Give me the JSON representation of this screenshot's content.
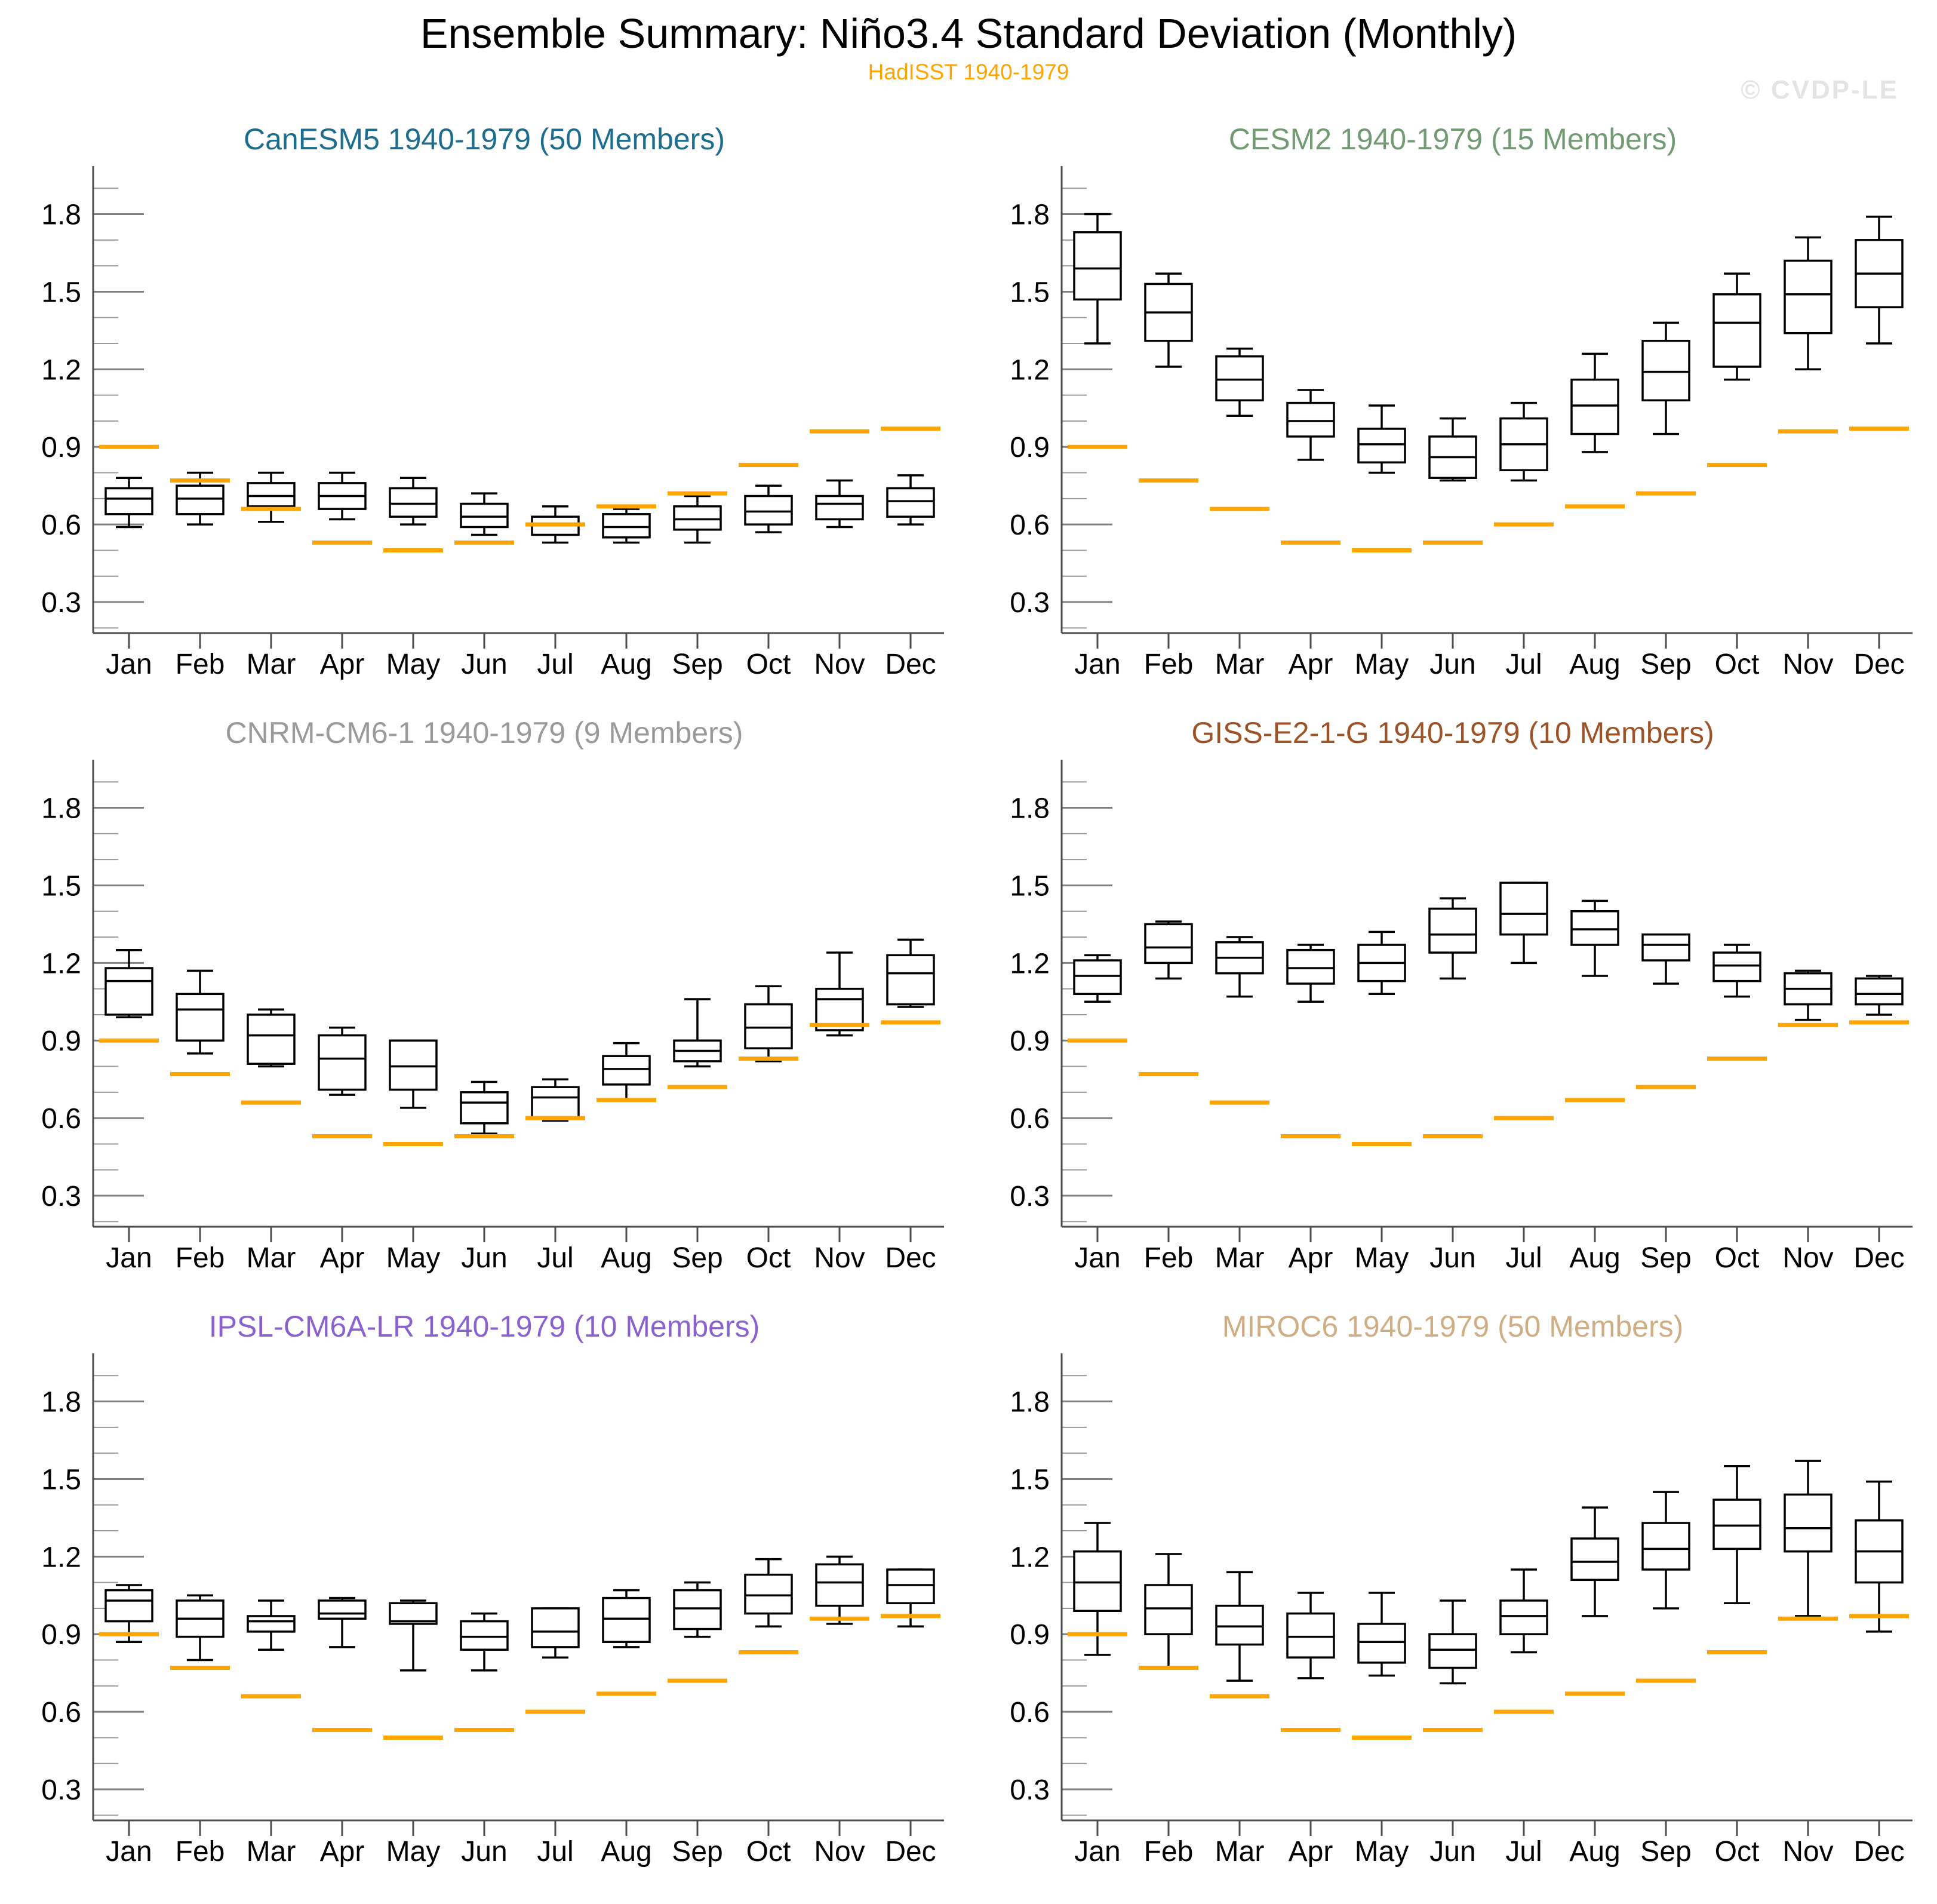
{
  "page": {
    "title": "Ensemble Summary: Niño3.4 Standard Deviation (Monthly)",
    "subtitle": "HadISST 1940-1979",
    "watermark": "© CVDP-LE"
  },
  "colors": {
    "subtitle": "#FFA500",
    "obs_line": "#FFA500",
    "watermark": "#E4E4E4",
    "box_stroke": "#000000",
    "spine": "#4D4D4D",
    "major_tick": "#808080",
    "minor_tick": "#9A9A9A",
    "tick_label": "#000000"
  },
  "axis": {
    "months": [
      "Jan",
      "Feb",
      "Mar",
      "Apr",
      "May",
      "Jun",
      "Jul",
      "Aug",
      "Sep",
      "Oct",
      "Nov",
      "Dec"
    ],
    "y_ticks": [
      0.3,
      0.6,
      0.9,
      1.2,
      1.5,
      1.8
    ],
    "y_minor_step": 0.1,
    "y_minor_min": 0.2,
    "y_minor_max": 1.9,
    "y_min": 0.18,
    "y_max": 1.97,
    "grid": false,
    "legend": "none"
  },
  "obs": {
    "name": "HadISST 1940-1979",
    "values": [
      0.9,
      0.77,
      0.66,
      0.53,
      0.5,
      0.53,
      0.6,
      0.67,
      0.72,
      0.83,
      0.96,
      0.97
    ]
  },
  "chart_data": [
    {
      "type": "box",
      "title": "CanESM5 1940-1979 (50 Members)",
      "model": "CanESM5",
      "period": "1940-1979",
      "members": 50,
      "title_color": "#1D6D8E",
      "categories": [
        "Jan",
        "Feb",
        "Mar",
        "Apr",
        "May",
        "Jun",
        "Jul",
        "Aug",
        "Sep",
        "Oct",
        "Nov",
        "Dec"
      ],
      "box": {
        "low": [
          0.59,
          0.6,
          0.61,
          0.62,
          0.6,
          0.56,
          0.53,
          0.53,
          0.53,
          0.57,
          0.59,
          0.6
        ],
        "q1": [
          0.64,
          0.64,
          0.67,
          0.66,
          0.63,
          0.59,
          0.56,
          0.55,
          0.58,
          0.6,
          0.62,
          0.63
        ],
        "median": [
          0.7,
          0.7,
          0.71,
          0.71,
          0.68,
          0.63,
          0.6,
          0.59,
          0.62,
          0.65,
          0.68,
          0.69
        ],
        "q3": [
          0.74,
          0.75,
          0.76,
          0.76,
          0.74,
          0.68,
          0.63,
          0.64,
          0.67,
          0.71,
          0.71,
          0.74
        ],
        "high": [
          0.78,
          0.8,
          0.8,
          0.8,
          0.78,
          0.72,
          0.67,
          0.66,
          0.71,
          0.75,
          0.77,
          0.79
        ]
      }
    },
    {
      "type": "box",
      "title": "CESM2 1940-1979 (15 Members)",
      "model": "CESM2",
      "period": "1940-1979",
      "members": 15,
      "title_color": "#729B74",
      "categories": [
        "Jan",
        "Feb",
        "Mar",
        "Apr",
        "May",
        "Jun",
        "Jul",
        "Aug",
        "Sep",
        "Oct",
        "Nov",
        "Dec"
      ],
      "box": {
        "low": [
          1.3,
          1.21,
          1.02,
          0.85,
          0.8,
          0.77,
          0.77,
          0.88,
          0.95,
          1.16,
          1.2,
          1.3
        ],
        "q1": [
          1.47,
          1.31,
          1.08,
          0.94,
          0.84,
          0.78,
          0.81,
          0.95,
          1.08,
          1.21,
          1.34,
          1.44
        ],
        "median": [
          1.59,
          1.42,
          1.16,
          1.0,
          0.91,
          0.86,
          0.91,
          1.06,
          1.19,
          1.38,
          1.49,
          1.57
        ],
        "q3": [
          1.73,
          1.53,
          1.25,
          1.07,
          0.97,
          0.94,
          1.01,
          1.16,
          1.31,
          1.49,
          1.62,
          1.7
        ],
        "high": [
          1.8,
          1.57,
          1.28,
          1.12,
          1.06,
          1.01,
          1.07,
          1.26,
          1.38,
          1.57,
          1.71,
          1.79
        ]
      }
    },
    {
      "type": "box",
      "title": "CNRM-CM6-1 1940-1979 (9 Members)",
      "model": "CNRM-CM6-1",
      "period": "1940-1979",
      "members": 9,
      "title_color": "#9A9A9A",
      "categories": [
        "Jan",
        "Feb",
        "Mar",
        "Apr",
        "May",
        "Jun",
        "Jul",
        "Aug",
        "Sep",
        "Oct",
        "Nov",
        "Dec"
      ],
      "box": {
        "low": [
          0.99,
          0.85,
          0.8,
          0.69,
          0.64,
          0.54,
          0.59,
          0.67,
          0.8,
          0.82,
          0.92,
          1.03
        ],
        "q1": [
          1.0,
          0.9,
          0.81,
          0.71,
          0.71,
          0.58,
          0.6,
          0.73,
          0.82,
          0.87,
          0.94,
          1.04
        ],
        "median": [
          1.13,
          1.02,
          0.92,
          0.83,
          0.8,
          0.66,
          0.68,
          0.79,
          0.86,
          0.95,
          1.06,
          1.16
        ],
        "q3": [
          1.18,
          1.08,
          1.0,
          0.92,
          0.9,
          0.7,
          0.72,
          0.84,
          0.9,
          1.04,
          1.1,
          1.23
        ],
        "high": [
          1.25,
          1.17,
          1.02,
          0.95,
          0.9,
          0.74,
          0.75,
          0.89,
          1.06,
          1.11,
          1.24,
          1.29
        ]
      }
    },
    {
      "type": "box",
      "title": "GISS-E2-1-G 1940-1979 (10 Members)",
      "model": "GISS-E2-1-G",
      "period": "1940-1979",
      "members": 10,
      "title_color": "#9D5327",
      "categories": [
        "Jan",
        "Feb",
        "Mar",
        "Apr",
        "May",
        "Jun",
        "Jul",
        "Aug",
        "Sep",
        "Oct",
        "Nov",
        "Dec"
      ],
      "box": {
        "low": [
          1.05,
          1.14,
          1.07,
          1.05,
          1.08,
          1.14,
          1.2,
          1.15,
          1.12,
          1.07,
          0.98,
          1.0
        ],
        "q1": [
          1.08,
          1.2,
          1.16,
          1.12,
          1.13,
          1.24,
          1.31,
          1.27,
          1.21,
          1.13,
          1.04,
          1.04
        ],
        "median": [
          1.15,
          1.26,
          1.22,
          1.18,
          1.2,
          1.31,
          1.39,
          1.33,
          1.27,
          1.19,
          1.1,
          1.08
        ],
        "q3": [
          1.21,
          1.35,
          1.28,
          1.25,
          1.27,
          1.41,
          1.51,
          1.4,
          1.31,
          1.24,
          1.16,
          1.14
        ],
        "high": [
          1.23,
          1.36,
          1.3,
          1.27,
          1.32,
          1.45,
          1.51,
          1.44,
          1.31,
          1.27,
          1.17,
          1.15
        ]
      }
    },
    {
      "type": "box",
      "title": "IPSL-CM6A-LR 1940-1979 (10 Members)",
      "model": "IPSL-CM6A-LR",
      "period": "1940-1979",
      "members": 10,
      "title_color": "#8A62D0",
      "categories": [
        "Jan",
        "Feb",
        "Mar",
        "Apr",
        "May",
        "Jun",
        "Jul",
        "Aug",
        "Sep",
        "Oct",
        "Nov",
        "Dec"
      ],
      "box": {
        "low": [
          0.87,
          0.8,
          0.84,
          0.85,
          0.76,
          0.76,
          0.81,
          0.85,
          0.89,
          0.93,
          0.94,
          0.93
        ],
        "q1": [
          0.95,
          0.89,
          0.91,
          0.96,
          0.94,
          0.84,
          0.85,
          0.87,
          0.92,
          0.98,
          1.01,
          1.02
        ],
        "median": [
          1.03,
          0.96,
          0.95,
          0.98,
          0.95,
          0.89,
          0.91,
          0.96,
          1.0,
          1.05,
          1.1,
          1.09
        ],
        "q3": [
          1.07,
          1.03,
          0.97,
          1.03,
          1.02,
          0.95,
          1.0,
          1.04,
          1.07,
          1.13,
          1.17,
          1.15
        ],
        "high": [
          1.09,
          1.05,
          1.03,
          1.04,
          1.03,
          0.98,
          1.0,
          1.07,
          1.1,
          1.19,
          1.2,
          1.15
        ]
      }
    },
    {
      "type": "box",
      "title": "MIROC6 1940-1979 (50 Members)",
      "model": "MIROC6",
      "period": "1940-1979",
      "members": 50,
      "title_color": "#CFAE85",
      "categories": [
        "Jan",
        "Feb",
        "Mar",
        "Apr",
        "May",
        "Jun",
        "Jul",
        "Aug",
        "Sep",
        "Oct",
        "Nov",
        "Dec"
      ],
      "box": {
        "low": [
          0.82,
          0.77,
          0.72,
          0.73,
          0.74,
          0.71,
          0.83,
          0.97,
          1.0,
          1.02,
          0.97,
          0.91
        ],
        "q1": [
          0.99,
          0.9,
          0.86,
          0.81,
          0.79,
          0.77,
          0.9,
          1.11,
          1.15,
          1.23,
          1.22,
          1.1
        ],
        "median": [
          1.1,
          1.0,
          0.93,
          0.89,
          0.87,
          0.84,
          0.97,
          1.18,
          1.23,
          1.32,
          1.31,
          1.22
        ],
        "q3": [
          1.22,
          1.09,
          1.01,
          0.98,
          0.94,
          0.9,
          1.03,
          1.27,
          1.33,
          1.42,
          1.44,
          1.34
        ],
        "high": [
          1.33,
          1.21,
          1.14,
          1.06,
          1.06,
          1.03,
          1.15,
          1.39,
          1.45,
          1.55,
          1.57,
          1.49
        ]
      }
    }
  ]
}
